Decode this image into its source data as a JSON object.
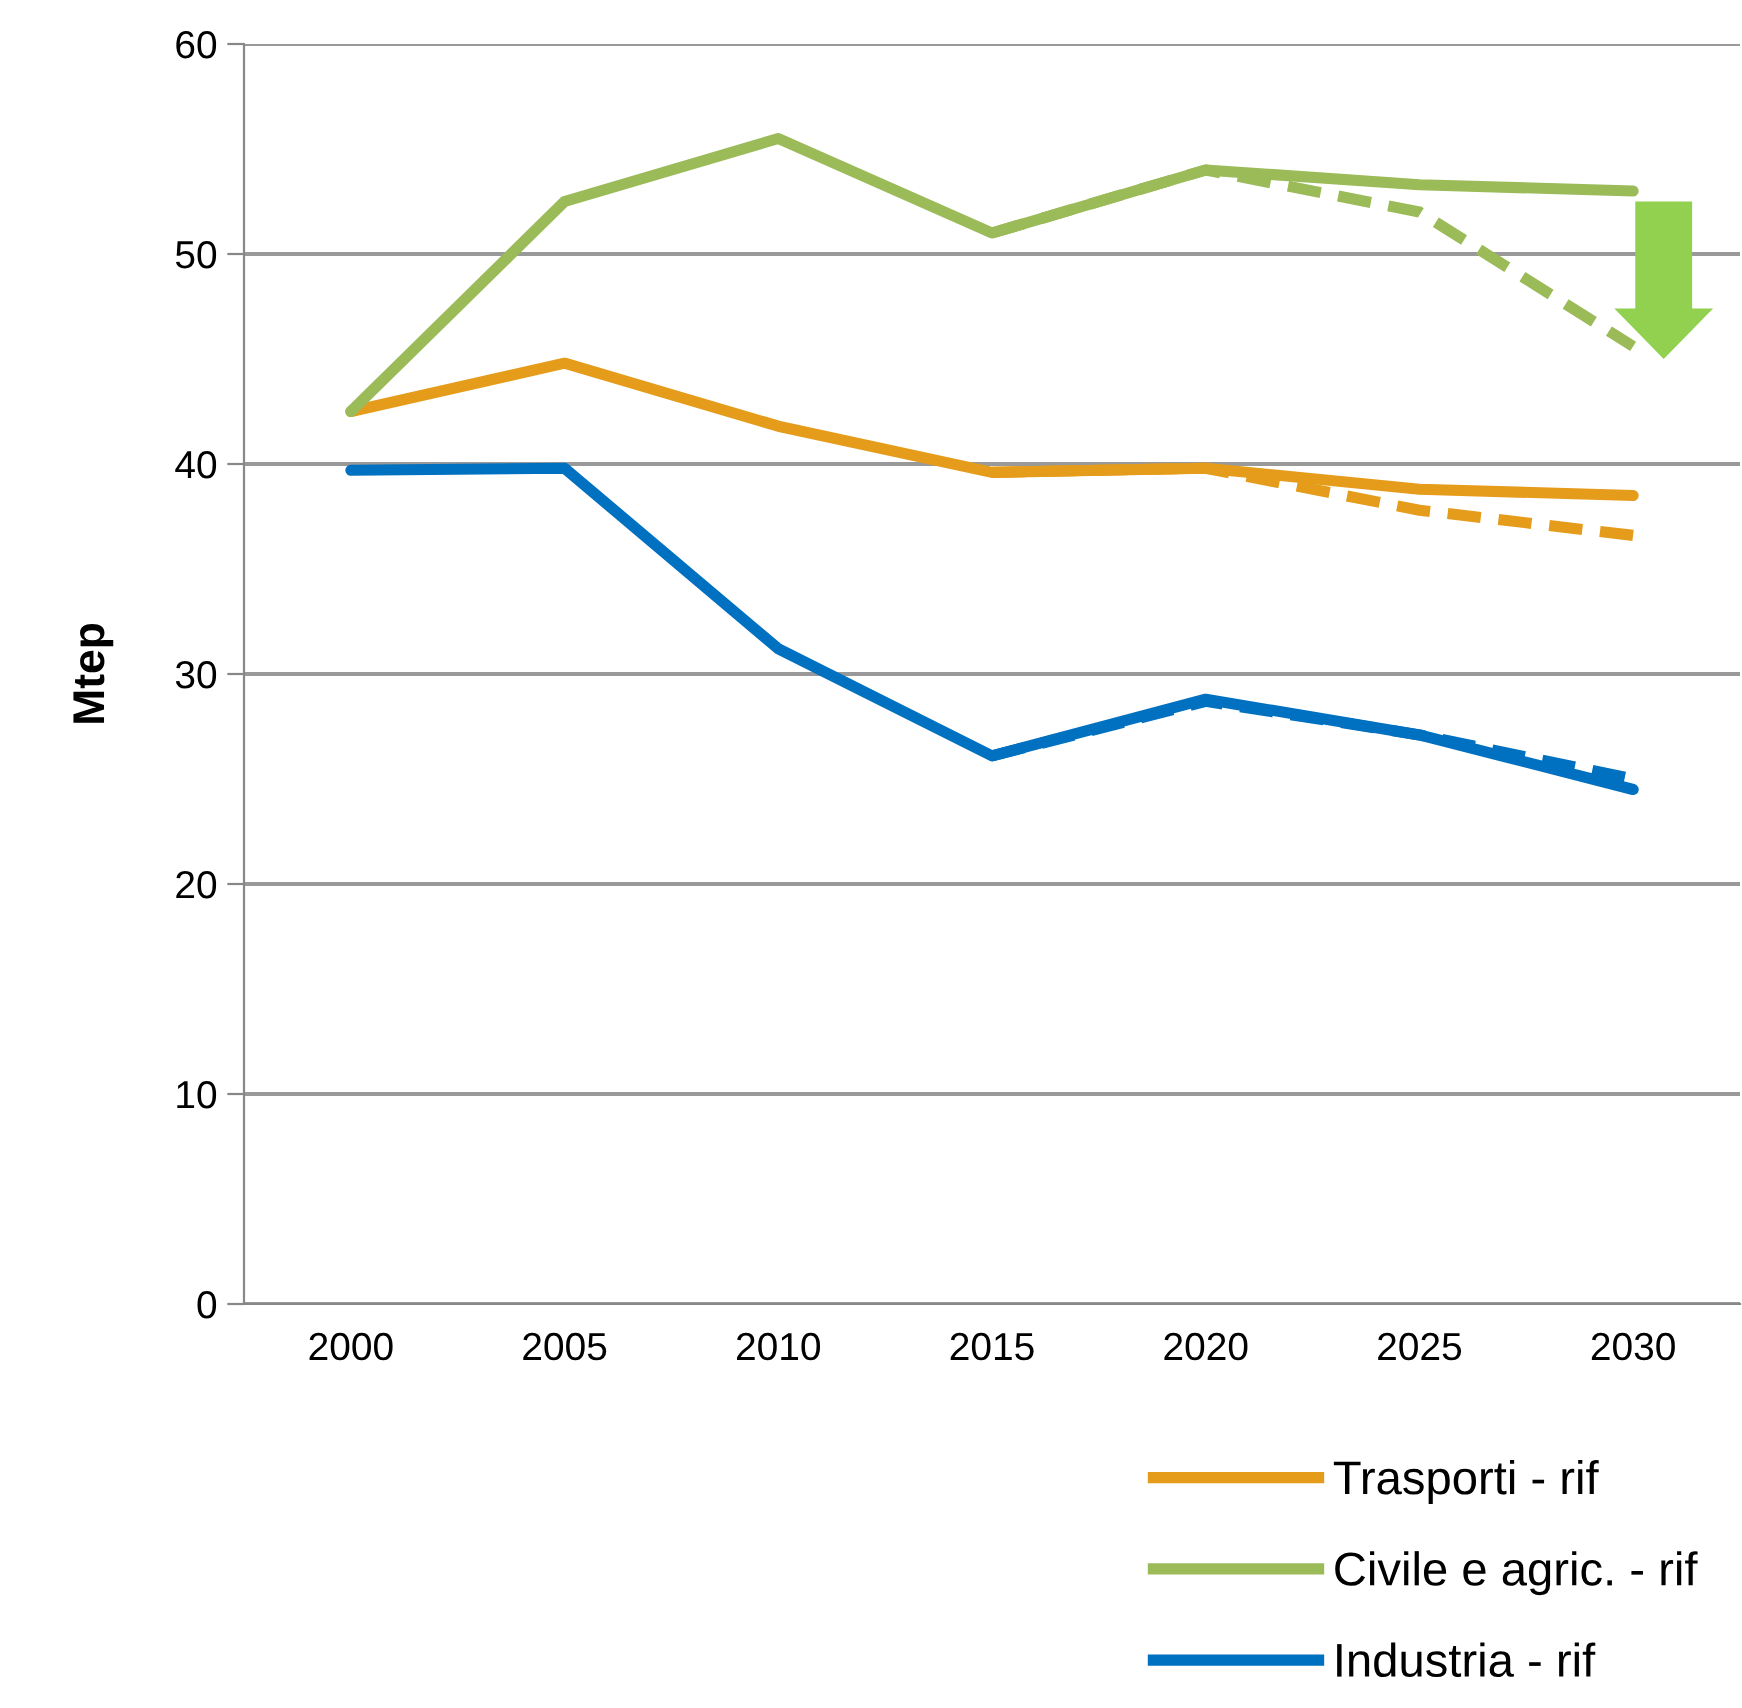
{
  "chart_data": {
    "type": "line",
    "ylabel": "Mtep",
    "categories": [
      "2000",
      "2005",
      "2010",
      "2015",
      "2020",
      "2025",
      "2030"
    ],
    "series": [
      {
        "name": "Trasporti - rif",
        "color": "#e59c1a",
        "values": [
          42.5,
          44.8,
          41.8,
          39.6,
          39.8,
          38.8,
          38.5
        ]
      },
      {
        "name": "Civile e agric. - rif",
        "color": "#9bbb59",
        "values": [
          42.5,
          52.5,
          55.5,
          51.0,
          54.0,
          53.3,
          53.0
        ]
      },
      {
        "name": "Industria - rif",
        "color": "#0070c0",
        "values": [
          39.7,
          39.8,
          31.2,
          26.1,
          28.8,
          27.1,
          24.5
        ]
      },
      {
        "color": "#e59c1a",
        "line_style": "dashed",
        "values": [
          null,
          null,
          null,
          39.6,
          39.8,
          37.8,
          36.6
        ]
      },
      {
        "color": "#9bbb59",
        "line_style": "dashed",
        "values": [
          null,
          null,
          null,
          51.0,
          54.0,
          52.0,
          45.6
        ]
      },
      {
        "color": "#0070c0",
        "line_style": "dashed",
        "values": [
          null,
          null,
          null,
          26.1,
          28.7,
          27.1,
          25.0
        ]
      }
    ],
    "ylim": [
      0,
      60
    ],
    "yticks": [
      0,
      10,
      20,
      30,
      40,
      50,
      60
    ],
    "grid": "y",
    "legend": "bottom right",
    "line_style": "solid"
  }
}
